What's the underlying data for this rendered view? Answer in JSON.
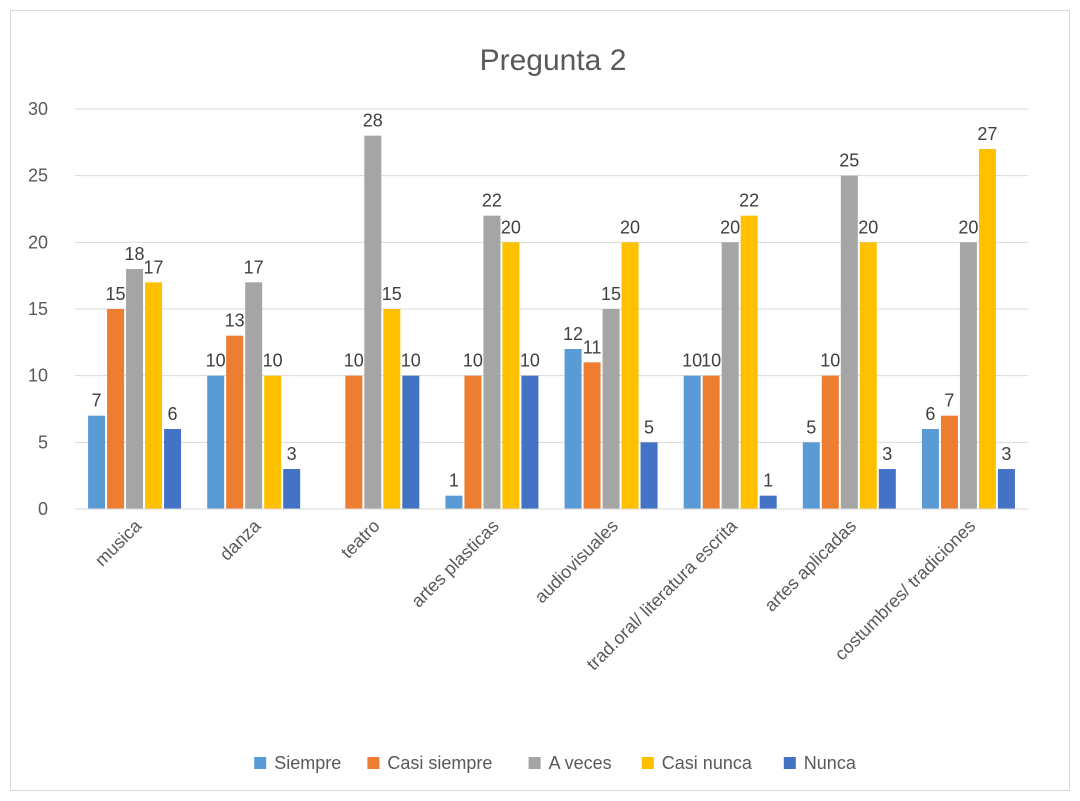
{
  "chart_data": {
    "type": "bar",
    "title": "Pregunta 2",
    "categories": [
      "musica",
      "danza",
      "teatro",
      "artes plasticas",
      "audiovisuales",
      "trad.oral/ literatura escrita",
      "artes aplicadas",
      "costumbres/ tradiciones"
    ],
    "series": [
      {
        "name": "Siempre",
        "color": "#5B9BD5",
        "values": [
          7,
          10,
          0,
          1,
          12,
          10,
          5,
          6
        ],
        "labels": [
          "7",
          "10",
          "",
          "1",
          "12",
          "10",
          "5",
          "6"
        ]
      },
      {
        "name": "Casi siempre",
        "color": "#ED7D31",
        "values": [
          15,
          13,
          10,
          10,
          11,
          10,
          10,
          7
        ],
        "labels": [
          "15",
          "13",
          "10",
          "10",
          "11",
          "10",
          "10",
          "7"
        ]
      },
      {
        "name": "A veces",
        "color": "#A5A5A5",
        "values": [
          18,
          17,
          28,
          22,
          15,
          20,
          25,
          20
        ],
        "labels": [
          "18",
          "17",
          "28",
          "22",
          "15",
          "20",
          "25",
          "20"
        ]
      },
      {
        "name": "Casi nunca",
        "color": "#FFC000",
        "values": [
          17,
          10,
          15,
          20,
          20,
          22,
          20,
          27
        ],
        "labels": [
          "17",
          "10",
          "15",
          "20",
          "20",
          "22",
          "20",
          "27"
        ]
      },
      {
        "name": "Nunca",
        "color": "#4472C4",
        "values": [
          6,
          3,
          10,
          10,
          5,
          1,
          3,
          3
        ],
        "labels": [
          "6",
          "3",
          "10",
          "10",
          "5",
          "1",
          "3",
          "3"
        ]
      }
    ],
    "ylim": [
      0,
      30
    ],
    "yticks": [
      0,
      5,
      10,
      15,
      20,
      25,
      30
    ],
    "grid": true,
    "legend": "bottom",
    "xlabel": "",
    "ylabel": ""
  }
}
